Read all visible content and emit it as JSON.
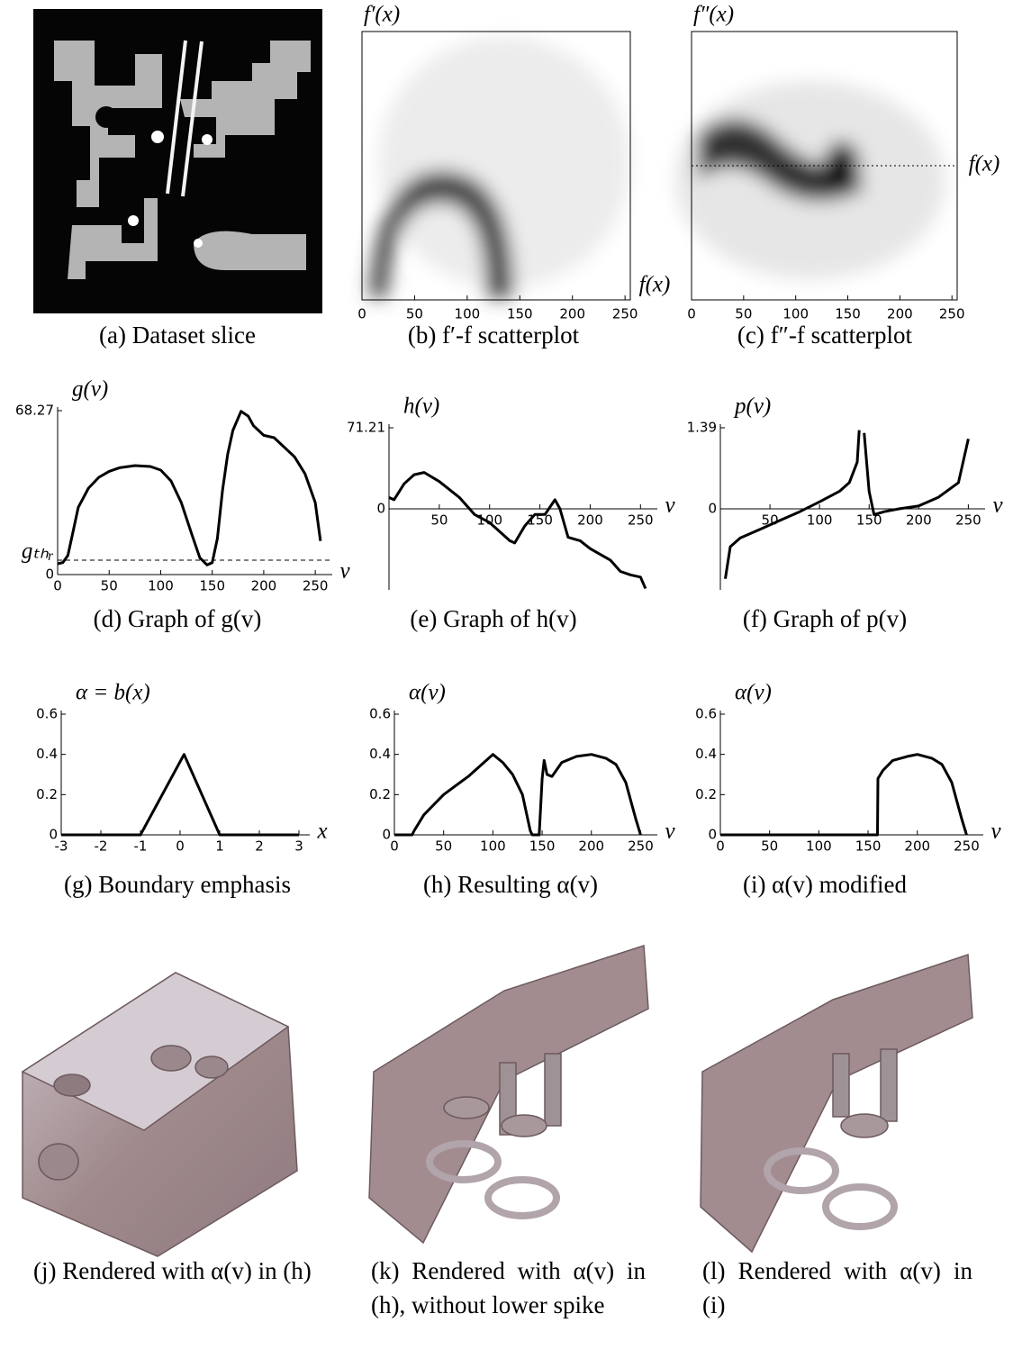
{
  "chart_data": [
    {
      "type": "image",
      "caption": "(a) Dataset slice"
    },
    {
      "type": "density",
      "caption": "(b) f′-f scatterplot",
      "xlabel": "f(x)",
      "ylabel": "f′(x)",
      "xlim": [
        0,
        255
      ],
      "xticks": [
        0,
        50,
        100,
        150,
        200,
        250
      ]
    },
    {
      "type": "density",
      "caption": "(c) f″-f scatterplot",
      "xlabel": "f(x)",
      "ylabel": "f″(x)",
      "xlim": [
        0,
        255
      ],
      "xticks": [
        0,
        50,
        100,
        150,
        200,
        250
      ]
    },
    {
      "type": "line",
      "caption": "(d) Graph of g(v)",
      "ylabel": "g(v)",
      "xlabel": "v",
      "color": "#000000",
      "xlim": [
        0,
        256
      ],
      "xticks": [
        0,
        50,
        100,
        150,
        200,
        250
      ],
      "ylim": [
        0,
        68.27
      ],
      "yticks": [
        0,
        {
          "value": 6,
          "label": "gₜₕᵣ"
        },
        68.27
      ],
      "x": [
        0,
        5,
        10,
        15,
        20,
        30,
        40,
        50,
        60,
        75,
        90,
        100,
        110,
        120,
        130,
        138,
        145,
        150,
        155,
        160,
        165,
        170,
        178,
        185,
        190,
        200,
        210,
        220,
        230,
        240,
        250,
        255
      ],
      "values": [
        4.5,
        5,
        8,
        18,
        28,
        36,
        40.5,
        43,
        44.5,
        45.4,
        45,
        43.5,
        39,
        30,
        17,
        7,
        4,
        5,
        15,
        35,
        50,
        60,
        68,
        66,
        62,
        58,
        57,
        53,
        49,
        42,
        30,
        14
      ]
    },
    {
      "type": "line",
      "caption": "(e) Graph of h(v)",
      "ylabel": "h(v)",
      "xlabel": "v",
      "color": "#000000",
      "xlim": [
        0,
        256
      ],
      "xticks": [
        50,
        100,
        150,
        200,
        250
      ],
      "ylim": [
        -71.21,
        71.21
      ],
      "yticks": [
        0,
        71.21
      ],
      "x": [
        0,
        5,
        15,
        25,
        35,
        50,
        70,
        85,
        100,
        110,
        120,
        125,
        135,
        145,
        155,
        165,
        170,
        178,
        190,
        200,
        210,
        220,
        230,
        240,
        250,
        255
      ],
      "values": [
        10,
        8,
        22,
        30,
        32,
        24,
        10,
        -5,
        -12,
        -20,
        -28,
        -30,
        -15,
        -5,
        -5,
        8,
        0,
        -25,
        -28,
        -35,
        -40,
        -45,
        -55,
        -58,
        -60,
        -70
      ]
    },
    {
      "type": "line",
      "caption": "(f) Graph of p(v)",
      "ylabel": "p(v)",
      "xlabel": "v",
      "color": "#000000",
      "xlim": [
        0,
        256
      ],
      "xticks": [
        50,
        100,
        150,
        200,
        250
      ],
      "ylim": [
        -1.39,
        1.39
      ],
      "yticks": [
        0,
        1.39
      ],
      "x": [
        5,
        10,
        20,
        40,
        60,
        80,
        100,
        120,
        130,
        138,
        140,
        142,
        145,
        150,
        155,
        165,
        180,
        200,
        220,
        240,
        250
      ],
      "values": [
        -1.2,
        -0.65,
        -0.5,
        -0.35,
        -0.2,
        -0.05,
        0.12,
        0.3,
        0.45,
        0.8,
        1.35,
        null,
        1.3,
        0.3,
        -0.1,
        -0.05,
        0,
        0.05,
        0.2,
        0.45,
        1.2
      ]
    },
    {
      "type": "line",
      "caption": "(g) Boundary emphasis",
      "ylabel": "α = b(x)",
      "xlabel": "x",
      "color": "#000000",
      "xlim": [
        -3,
        3
      ],
      "xticks": [
        -3,
        -2,
        -1,
        0,
        1,
        2,
        3
      ],
      "ylim": [
        0,
        0.6
      ],
      "yticks": [
        0,
        0.2,
        0.4,
        0.6
      ],
      "x": [
        -3,
        -1,
        0.1,
        1,
        3
      ],
      "values": [
        0,
        0,
        0.4,
        0,
        0
      ]
    },
    {
      "type": "line",
      "caption": "(h) Resulting α(v)",
      "ylabel": "α(v)",
      "xlabel": "v",
      "color": "#000000",
      "xlim": [
        0,
        256
      ],
      "xticks": [
        0,
        50,
        100,
        150,
        200,
        250
      ],
      "ylim": [
        0,
        0.6
      ],
      "yticks": [
        0,
        0.2,
        0.4,
        0.6
      ],
      "x": [
        0,
        18,
        20,
        30,
        50,
        75,
        100,
        110,
        120,
        130,
        138,
        140,
        147,
        150,
        152,
        155,
        160,
        170,
        185,
        200,
        215,
        225,
        235,
        245,
        250
      ],
      "values": [
        0,
        0,
        0.02,
        0.1,
        0.2,
        0.29,
        0.4,
        0.36,
        0.3,
        0.2,
        0.02,
        0,
        0,
        0.28,
        0.37,
        0.3,
        0.29,
        0.36,
        0.39,
        0.4,
        0.38,
        0.35,
        0.26,
        0.08,
        0
      ]
    },
    {
      "type": "line",
      "caption": "(i) α(v) modified",
      "ylabel": "α(v)",
      "xlabel": "v",
      "color": "#000000",
      "xlim": [
        0,
        256
      ],
      "xticks": [
        0,
        50,
        100,
        150,
        200,
        250
      ],
      "ylim": [
        0,
        0.6
      ],
      "yticks": [
        0,
        0.2,
        0.4,
        0.6
      ],
      "x": [
        0,
        159.5,
        160,
        165,
        175,
        190,
        200,
        215,
        225,
        235,
        245,
        250
      ],
      "values": [
        0,
        0,
        0.28,
        0.32,
        0.37,
        0.39,
        0.4,
        0.38,
        0.35,
        0.26,
        0.08,
        0
      ]
    },
    {
      "type": "image",
      "caption": "(j) Rendered with α(v) in (h)"
    },
    {
      "type": "image",
      "caption": "(k) Rendered with α(v) in (h), without lower spike"
    },
    {
      "type": "image",
      "caption": "(l) Rendered with α(v) in (i)"
    }
  ]
}
